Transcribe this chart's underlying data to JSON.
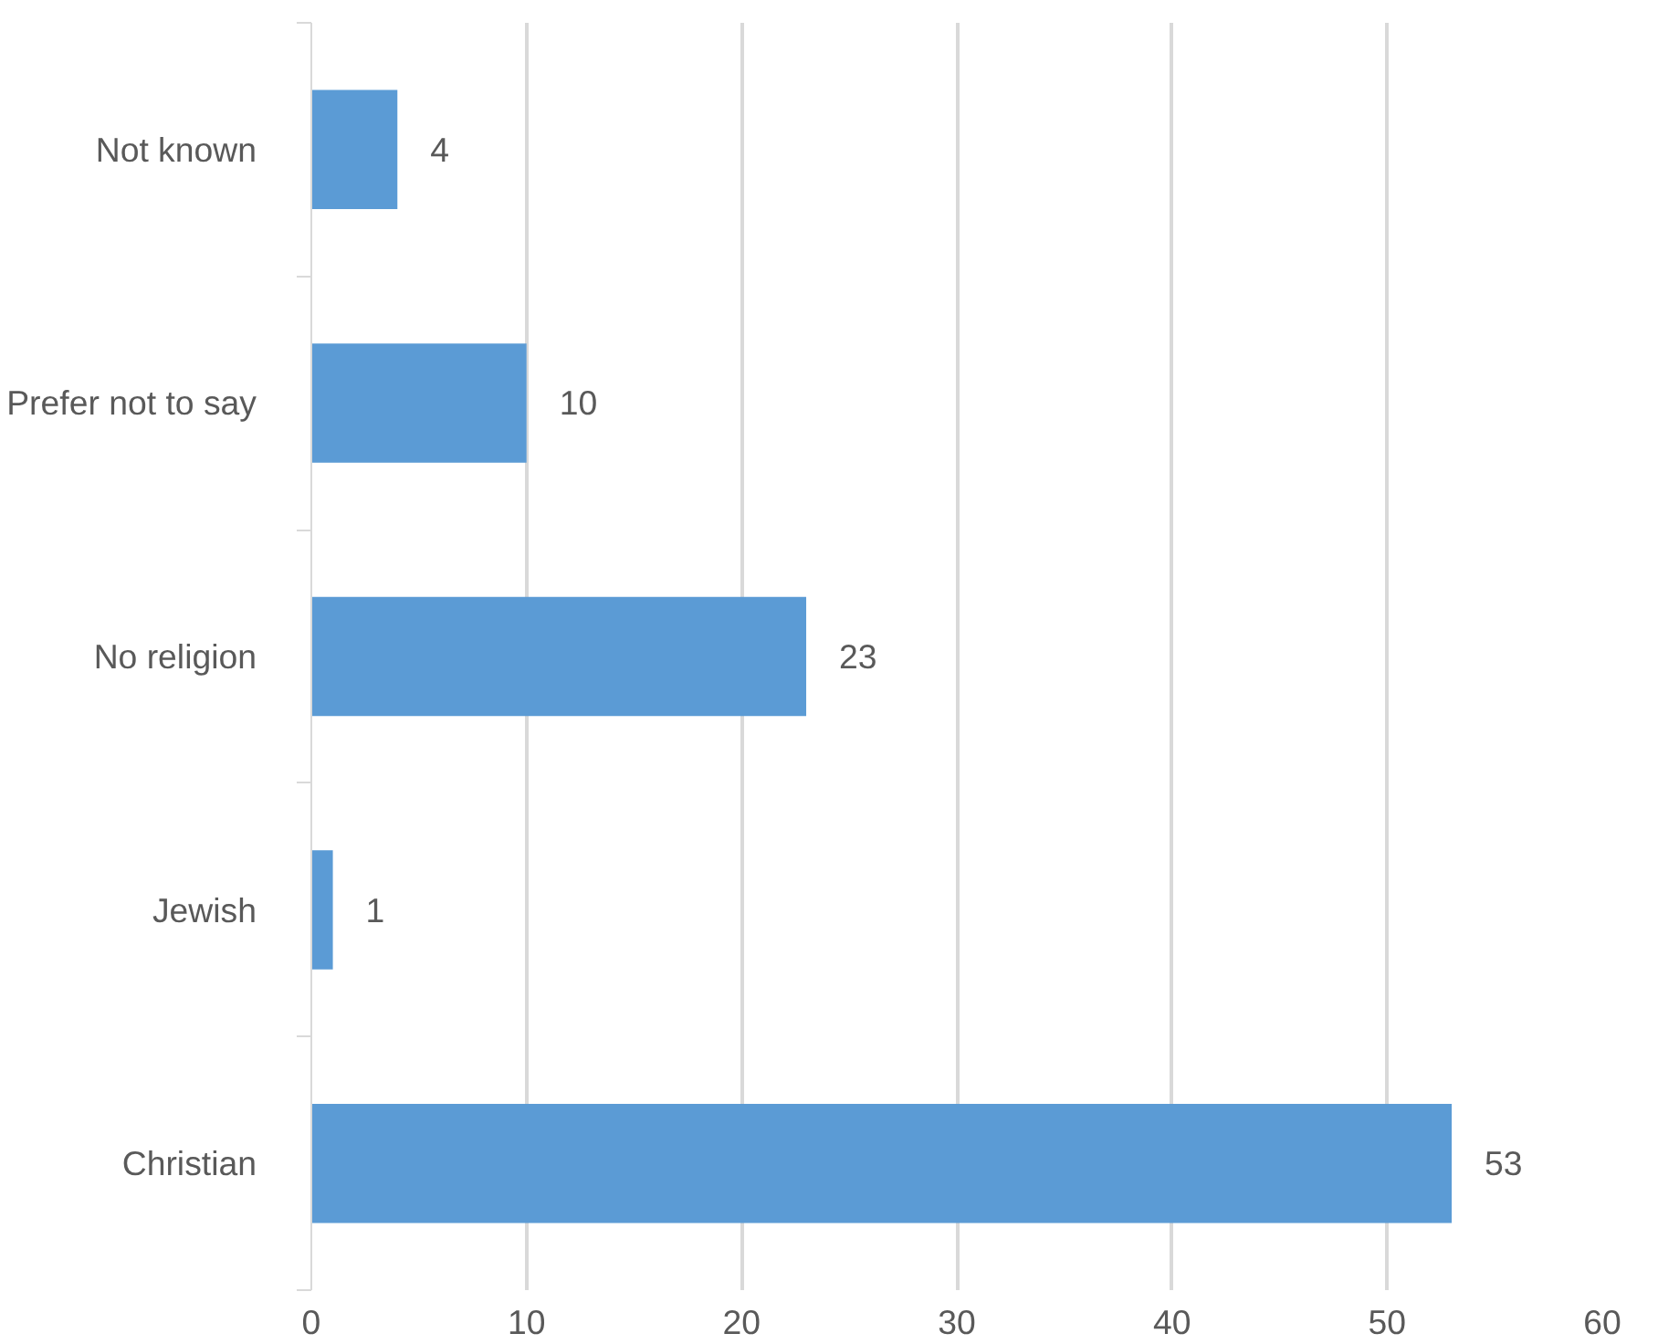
{
  "chart_data": {
    "type": "bar",
    "orientation": "horizontal",
    "categories": [
      "Not known",
      "Prefer not to say",
      "No religion",
      "Jewish",
      "Christian"
    ],
    "values": [
      4,
      10,
      23,
      1,
      53
    ],
    "color": "#5b9bd5",
    "xlim": [
      0,
      60
    ],
    "xticks": [
      0,
      10,
      20,
      30,
      40,
      50,
      60
    ],
    "grid": "x",
    "data_labels": true
  }
}
